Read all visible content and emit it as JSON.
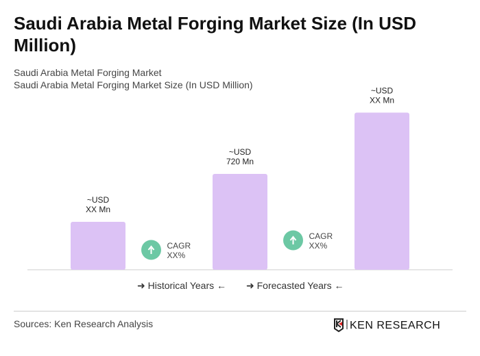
{
  "title": "Saudi Arabia Metal Forging Market Size (In USD Million)",
  "subtitle_1": "Saudi Arabia Metal Forging Market",
  "subtitle_2": "Saudi Arabia Metal Forging Market Size (In USD Million)",
  "colors": {
    "bar": "#dcc2f5",
    "cagr_badge": "#6cc8a4",
    "axis": "#cccccc"
  },
  "chart_data": {
    "type": "bar",
    "categories": [
      "",
      "",
      ""
    ],
    "values": [
      360,
      720,
      1180
    ],
    "data_labels": [
      [
        "~USD",
        "XX Mn"
      ],
      [
        "~USD",
        "720 Mn"
      ],
      [
        "~USD",
        "XX Mn"
      ]
    ],
    "annotations": [
      {
        "icon": "arrow-up-icon",
        "line1": "CAGR",
        "line2": "XX%"
      },
      {
        "icon": "arrow-up-icon",
        "line1": "CAGR",
        "line2": "XX%"
      }
    ],
    "grid": false,
    "legend": {
      "placement": "bottom",
      "items": [
        "Historical Years",
        "Forecasted Years"
      ]
    }
  },
  "footer": {
    "source": "Sources: Ken Research Analysis",
    "logo_text": "KEN RESEARCH"
  }
}
